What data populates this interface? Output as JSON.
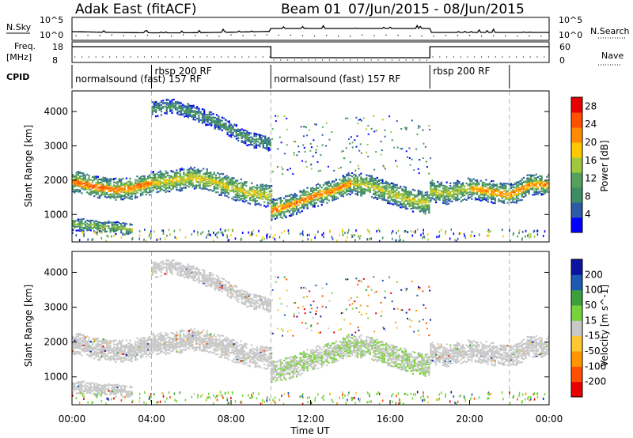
{
  "header": {
    "radar": "Adak East (fitACF)",
    "beam": "Beam 01",
    "dates": "07/Jun/2015 - 08/Jun/2015"
  },
  "strip": {
    "nsky_label": "N.Sky",
    "nsky_ticks": [
      "10^5",
      "10^0"
    ],
    "nsearch_label": "N.Search",
    "nsearch_ticks": [
      "10^5",
      "10^0"
    ],
    "freq_label": "Freq.",
    "freq_unit": "[MHz]",
    "freq_ticks": [
      "18",
      "8"
    ],
    "nave_label": "Nave",
    "nave_ticks": [
      "60",
      "0"
    ],
    "cpid_label": "CPID",
    "cpid_segments": [
      {
        "label": "normalsound (fast) 157 RF",
        "start_h": 0.0,
        "end_h": 4.0
      },
      {
        "label": "rbsp 200 RF",
        "start_h": 4.0,
        "end_h": 10.0
      },
      {
        "label": "normalsound (fast) 157 RF",
        "start_h": 10.0,
        "end_h": 18.0
      },
      {
        "label": "rbsp 200 RF",
        "start_h": 18.0,
        "end_h": 22.0
      },
      {
        "label": "",
        "start_h": 22.0,
        "end_h": 24.0
      }
    ]
  },
  "colors": {
    "power_scale": [
      "#0000ff",
      "#2d5aa8",
      "#3c8c64",
      "#55a05a",
      "#a0c83c",
      "#ffc800",
      "#ff8c00",
      "#ff5000",
      "#e60000"
    ],
    "velocity_scale": [
      "#e60000",
      "#ff5000",
      "#ff9600",
      "#ffc832",
      "#c8c8c8",
      "#78d23c",
      "#3ca03c",
      "#1e5ab4",
      "#0a14a0"
    ],
    "grey": "#c8c8c8"
  },
  "chart_data": [
    {
      "type": "heatmap",
      "panel": "power",
      "xlabel": "",
      "ylabel": "Slant Range [km]",
      "xlim": [
        0,
        24
      ],
      "ylim": [
        200,
        4600
      ],
      "yticks": [
        "1000",
        "2000",
        "3000",
        "4000"
      ],
      "colorbar_label": "Power [dB]",
      "colorbar_ticks": [
        "4",
        "8",
        "12",
        "16",
        "20",
        "24",
        "28"
      ],
      "colorbar_range": [
        0,
        30
      ],
      "dashed_lines_h": [
        4.0,
        10.0,
        22.0
      ],
      "echo_bands": [
        {
          "t": [
            0,
            1,
            2,
            3,
            4,
            5,
            6,
            7,
            8,
            9,
            10
          ],
          "range_km": [
            2000,
            1850,
            1750,
            1800,
            1950,
            2000,
            2100,
            2000,
            1800,
            1650,
            1550
          ],
          "power_db": 18
        },
        {
          "t": [
            10,
            11,
            12,
            13,
            14,
            15,
            16,
            17,
            18
          ],
          "range_km": [
            1150,
            1300,
            1550,
            1700,
            1950,
            1850,
            1650,
            1450,
            1350
          ],
          "power_db": 17
        },
        {
          "t": [
            18,
            19,
            20,
            21,
            22,
            23,
            24
          ],
          "range_km": [
            1700,
            1650,
            1800,
            1700,
            1600,
            1900,
            1900
          ],
          "power_db": 16
        },
        {
          "t": [
            4,
            5,
            6,
            7,
            8,
            9,
            10
          ],
          "range_km": [
            4100,
            4200,
            4000,
            3800,
            3500,
            3200,
            3100
          ],
          "power_db": 10
        },
        {
          "t": [
            0,
            1,
            2,
            3
          ],
          "range_km": [
            750,
            700,
            650,
            600
          ],
          "power_db": 14
        }
      ]
    },
    {
      "type": "heatmap",
      "panel": "velocity",
      "xlabel": "Time UT",
      "ylabel": "Slant Range [km]",
      "xlim": [
        0,
        24
      ],
      "ylim": [
        200,
        4600
      ],
      "xticks": [
        "00:00",
        "04:00",
        "08:00",
        "12:00",
        "16:00",
        "20:00",
        "00:00"
      ],
      "yticks": [
        "1000",
        "2000",
        "3000",
        "4000"
      ],
      "colorbar_label": "Velocity [m s^-1]",
      "colorbar_ticks": [
        "200",
        "100",
        "50",
        "15",
        "-15",
        "-50",
        "-100",
        "-200"
      ],
      "dashed_lines_h": [
        4.0,
        10.0,
        22.0
      ]
    }
  ]
}
